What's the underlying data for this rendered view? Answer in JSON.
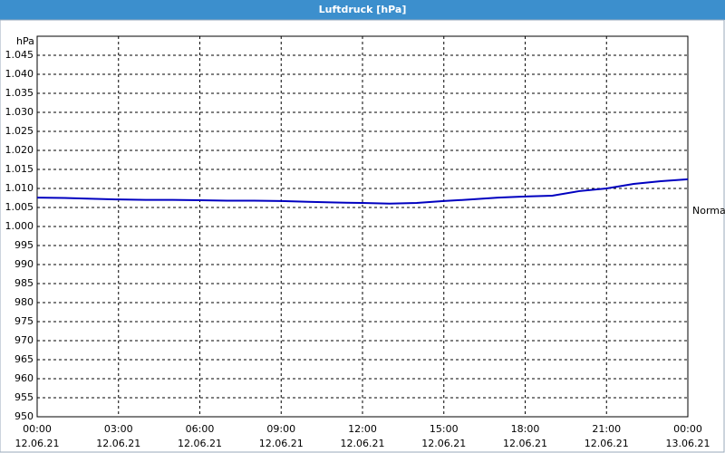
{
  "chart_data": {
    "type": "line",
    "title": "Luftdruck [hPa]",
    "y_label": "hPa",
    "annotation": "Normal",
    "x": [
      0,
      1,
      2,
      3,
      4,
      5,
      6,
      7,
      8,
      9,
      10,
      11,
      12,
      13,
      14,
      15,
      16,
      17,
      18,
      19,
      20,
      21,
      22,
      23,
      24
    ],
    "series": [
      {
        "name": "Luftdruck",
        "color": "#0000c0",
        "values": [
          1007.6,
          1007.5,
          1007.3,
          1007.1,
          1007.0,
          1007.0,
          1006.9,
          1006.8,
          1006.8,
          1006.7,
          1006.5,
          1006.3,
          1006.2,
          1006.0,
          1006.2,
          1006.7,
          1007.1,
          1007.6,
          1007.9,
          1008.1,
          1009.3,
          1010.0,
          1011.2,
          1011.9,
          1012.4
        ]
      }
    ],
    "xlim": [
      0,
      24
    ],
    "xticks": [
      {
        "value": 0,
        "label": "00:00\n12.06.21"
      },
      {
        "value": 3,
        "label": "03:00\n12.06.21"
      },
      {
        "value": 6,
        "label": "06:00\n12.06.21"
      },
      {
        "value": 9,
        "label": "09:00\n12.06.21"
      },
      {
        "value": 12,
        "label": "12:00\n12.06.21"
      },
      {
        "value": 15,
        "label": "15:00\n12.06.21"
      },
      {
        "value": 18,
        "label": "18:00\n12.06.21"
      },
      {
        "value": 21,
        "label": "21:00\n12.06.21"
      },
      {
        "value": 24,
        "label": "00:00\n13.06.21"
      }
    ],
    "ylim": [
      950,
      1050
    ],
    "yticks": [
      950,
      955,
      960,
      965,
      970,
      975,
      980,
      985,
      990,
      995,
      {
        "value": 1000,
        "label": "1.000"
      },
      {
        "value": 1005,
        "label": "1.005"
      },
      {
        "value": 1010,
        "label": "1.010"
      },
      {
        "value": 1015,
        "label": "1.015"
      },
      {
        "value": 1020,
        "label": "1.020"
      },
      {
        "value": 1025,
        "label": "1.025"
      },
      {
        "value": 1030,
        "label": "1.030"
      },
      {
        "value": 1035,
        "label": "1.035"
      },
      {
        "value": 1040,
        "label": "1.040"
      },
      {
        "value": 1045,
        "label": "1.045"
      }
    ],
    "grid": true
  }
}
